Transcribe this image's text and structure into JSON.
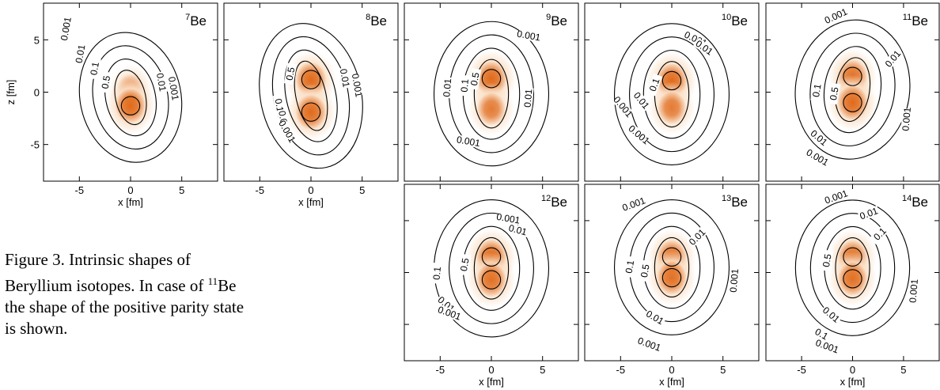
{
  "figure": {
    "caption": {
      "label": "Figure 3.",
      "text_before": "Intrinsic shapes of Beryllium isotopes.  In case of ",
      "mass_number": "11",
      "element": "Be",
      "text_after": " the shape of the positive parity state is shown."
    },
    "colors": {
      "core": "#e06a1a",
      "halo": "#fbe3cc",
      "contour": "#000000",
      "frame": "#000000"
    },
    "axes": {
      "xlabel": "x [fm]",
      "ylabel": "z [fm]",
      "x_ticks": [
        "-5",
        "0",
        "5"
      ],
      "z_ticks": [
        "5",
        "0",
        "-5"
      ]
    },
    "contour_levels": [
      "0.001",
      "0.01",
      "0.1",
      "0.5"
    ],
    "panels": [
      {
        "mass": "7",
        "element": "Be"
      },
      {
        "mass": "8",
        "element": "Be"
      },
      {
        "mass": "9",
        "element": "Be"
      },
      {
        "mass": "10",
        "element": "Be"
      },
      {
        "mass": "11",
        "element": "Be"
      },
      {
        "mass": "12",
        "element": "Be"
      },
      {
        "mass": "13",
        "element": "Be"
      },
      {
        "mass": "14",
        "element": "Be"
      }
    ]
  },
  "chart_data": {
    "type": "heatmap",
    "title": "",
    "xlabel": "x [fm]",
    "ylabel": "z [fm]",
    "xlim": [
      -8.5,
      8.5
    ],
    "ylim": [
      -8.5,
      8.5
    ],
    "x_ticks": [
      -5,
      0,
      5
    ],
    "y_ticks": [
      -5,
      0,
      5
    ],
    "contour_levels": [
      0.001,
      0.01,
      0.1,
      0.5
    ],
    "panels": [
      {
        "isotope": "7Be",
        "lobes": [
          {
            "x": 0,
            "z": 0.3,
            "w": 0.5
          },
          {
            "x": 0,
            "z": -1.3,
            "w": 1.0
          }
        ]
      },
      {
        "isotope": "8Be",
        "lobes": [
          {
            "x": 0,
            "z": 1.2,
            "w": 1.0
          },
          {
            "x": 0,
            "z": -1.9,
            "w": 1.0
          }
        ]
      },
      {
        "isotope": "9Be",
        "lobes": [
          {
            "x": 0,
            "z": 1.3,
            "w": 1.0
          },
          {
            "x": 0,
            "z": -1.6,
            "w": 0.75
          }
        ]
      },
      {
        "isotope": "10Be",
        "lobes": [
          {
            "x": 0,
            "z": 1.1,
            "w": 1.0
          },
          {
            "x": 0,
            "z": -1.5,
            "w": 0.75
          }
        ]
      },
      {
        "isotope": "11Be",
        "lobes": [
          {
            "x": 0,
            "z": 1.5,
            "w": 0.9
          },
          {
            "x": 0,
            "z": -1.0,
            "w": 1.0
          }
        ]
      },
      {
        "isotope": "12Be",
        "lobes": [
          {
            "x": 0,
            "z": 1.5,
            "w": 1.0
          },
          {
            "x": 0,
            "z": -0.7,
            "w": 0.9
          }
        ]
      },
      {
        "isotope": "13Be",
        "lobes": [
          {
            "x": 0,
            "z": 1.5,
            "w": 0.9
          },
          {
            "x": 0,
            "z": -0.5,
            "w": 0.9
          }
        ]
      },
      {
        "isotope": "14Be",
        "lobes": [
          {
            "x": 0,
            "z": 1.5,
            "w": 0.9
          },
          {
            "x": 0,
            "z": -0.6,
            "w": 0.9
          }
        ]
      }
    ]
  }
}
